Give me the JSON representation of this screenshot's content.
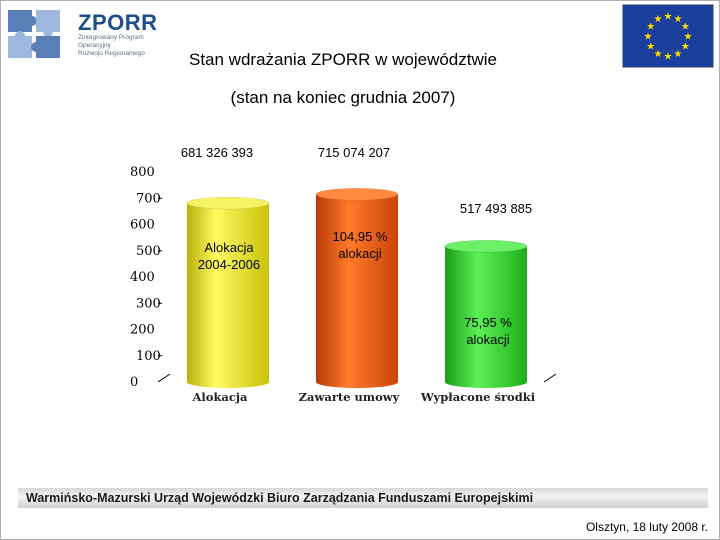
{
  "header": {
    "logo_name": "ZPORR",
    "logo_subtitle": [
      "Zintegrowany Program",
      "Operacyjny",
      "Rozwoju Regionalnego"
    ],
    "title_line1": "Stan wdrażania  ZPORR w województwie",
    "title_line2": "(stan na koniec grudnia 2007)"
  },
  "chart_data": {
    "type": "bar",
    "title": "",
    "xlabel": "",
    "ylabel": "",
    "ylim": [
      0,
      800
    ],
    "yticks": [
      "0",
      "100",
      "200",
      "300",
      "400",
      "500",
      "600",
      "700",
      "800"
    ],
    "categories": [
      "Alokacja",
      "Zawarte umowy",
      "Wypłacone środki"
    ],
    "values": [
      681.326393,
      715.074207,
      517.493885
    ],
    "value_labels": [
      "681 326 393",
      "715 074 207",
      "517 493 885"
    ],
    "bar_texts": [
      "Alokacja\n2004-2006",
      "104,95 %\nalokacji",
      "75,95 %\nalokacji"
    ],
    "colors": [
      "#e8e020",
      "#ee5a12",
      "#2ed12a"
    ]
  },
  "footer": {
    "organization": "Warmińsko-Mazurski Urząd Wojewódzki Biuro Zarządzania Funduszami Europejskimi",
    "date_place": "Olsztyn, 18 luty 2008 r."
  },
  "icons": {
    "logo": "puzzle-logo-icon",
    "flag": "eu-flag-icon"
  }
}
